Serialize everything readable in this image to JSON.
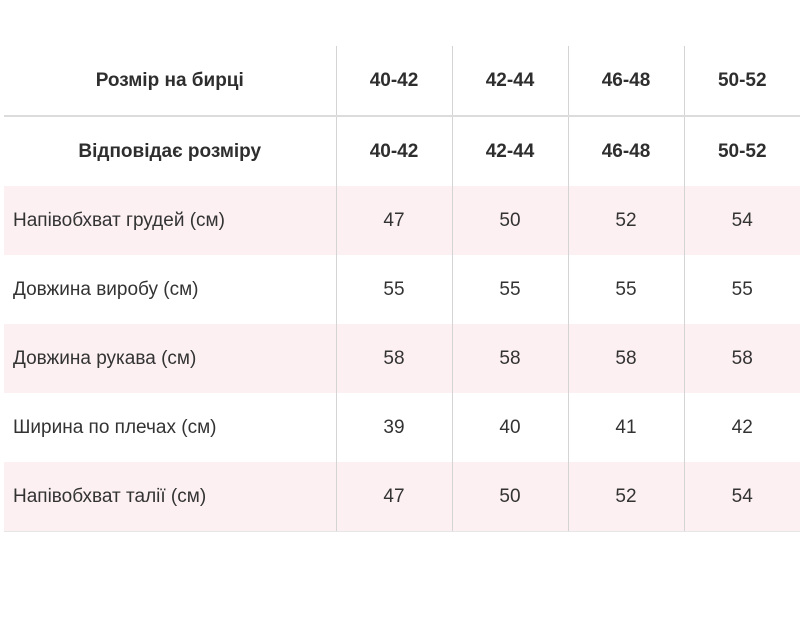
{
  "table": {
    "header_rows": [
      {
        "label": "Розмір на бирці",
        "values": [
          "40-42",
          "42-44",
          "46-48",
          "50-52"
        ]
      },
      {
        "label": "Відповідає розміру",
        "values": [
          "40-42",
          "42-44",
          "46-48",
          "50-52"
        ]
      }
    ],
    "rows": [
      {
        "label": "Напівобхват грудей (см)",
        "values": [
          "47",
          "50",
          "52",
          "54"
        ]
      },
      {
        "label": "Довжина виробу (см)",
        "values": [
          "55",
          "55",
          "55",
          "55"
        ]
      },
      {
        "label": "Довжина рукава (см)",
        "values": [
          "58",
          "58",
          "58",
          "58"
        ]
      },
      {
        "label": "Ширина по плечах (см)",
        "values": [
          "39",
          "40",
          "41",
          "42"
        ]
      },
      {
        "label": "Напівобхват талії (см)",
        "values": [
          "47",
          "50",
          "52",
          "54"
        ]
      }
    ]
  },
  "colors": {
    "stripe": "#fcf0f2",
    "grid_line": "#d4d4d4",
    "text": "#333333"
  }
}
